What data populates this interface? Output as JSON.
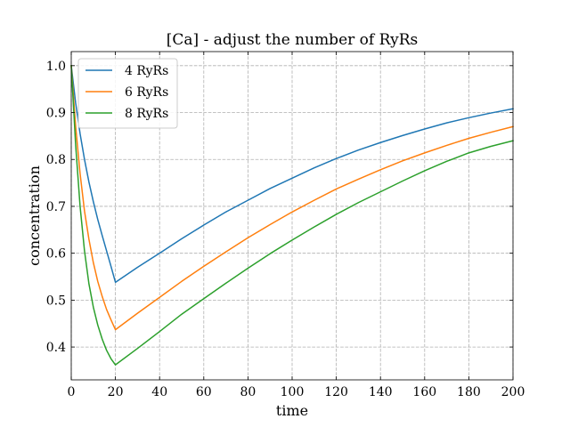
{
  "chart_data": {
    "type": "line",
    "title": "[Ca] - adjust the number of RyRs",
    "xlabel": "time",
    "ylabel": "concentration",
    "xlim": [
      0,
      200
    ],
    "ylim": [
      0.33,
      1.03
    ],
    "xticks": [
      0,
      20,
      40,
      60,
      80,
      100,
      120,
      140,
      160,
      180,
      200
    ],
    "yticks": [
      0.4,
      0.5,
      0.6,
      0.7,
      0.8,
      0.9,
      1.0
    ],
    "ytick_labels": [
      "0.4",
      "0.5",
      "0.6",
      "0.7",
      "0.8",
      "0.9",
      "1.0"
    ],
    "grid": true,
    "legend_position": "top-left",
    "series": [
      {
        "name": "4 RyRs",
        "color": "#1f77b4",
        "x": [
          0,
          2,
          4,
          6,
          8,
          10,
          12,
          14,
          16,
          18,
          20,
          30,
          40,
          50,
          60,
          70,
          80,
          90,
          100,
          110,
          120,
          130,
          140,
          150,
          160,
          170,
          180,
          190,
          200
        ],
        "y": [
          1.0,
          0.92,
          0.855,
          0.8,
          0.752,
          0.71,
          0.672,
          0.638,
          0.605,
          0.572,
          0.538,
          0.57,
          0.6,
          0.631,
          0.66,
          0.688,
          0.713,
          0.738,
          0.76,
          0.782,
          0.802,
          0.82,
          0.836,
          0.851,
          0.865,
          0.878,
          0.889,
          0.899,
          0.908
        ]
      },
      {
        "name": "6 RyRs",
        "color": "#ff7f0e",
        "x": [
          0,
          2,
          4,
          6,
          8,
          10,
          12,
          14,
          16,
          18,
          20,
          30,
          40,
          50,
          60,
          70,
          80,
          90,
          100,
          110,
          120,
          130,
          140,
          150,
          160,
          170,
          180,
          190,
          200
        ],
        "y": [
          1.0,
          0.87,
          0.77,
          0.69,
          0.63,
          0.58,
          0.54,
          0.508,
          0.48,
          0.458,
          0.437,
          0.472,
          0.506,
          0.54,
          0.572,
          0.603,
          0.633,
          0.661,
          0.688,
          0.713,
          0.737,
          0.758,
          0.778,
          0.797,
          0.814,
          0.83,
          0.845,
          0.858,
          0.87
        ]
      },
      {
        "name": "8 RyRs",
        "color": "#2ca02c",
        "x": [
          0,
          2,
          4,
          6,
          8,
          10,
          12,
          14,
          16,
          18,
          20,
          30,
          40,
          50,
          60,
          70,
          80,
          90,
          100,
          110,
          120,
          130,
          140,
          150,
          160,
          170,
          180,
          190,
          200
        ],
        "y": [
          1.0,
          0.83,
          0.7,
          0.605,
          0.535,
          0.485,
          0.447,
          0.417,
          0.393,
          0.375,
          0.362,
          0.397,
          0.433,
          0.47,
          0.503,
          0.536,
          0.568,
          0.599,
          0.628,
          0.656,
          0.683,
          0.708,
          0.731,
          0.754,
          0.776,
          0.796,
          0.814,
          0.828,
          0.84
        ]
      }
    ]
  }
}
